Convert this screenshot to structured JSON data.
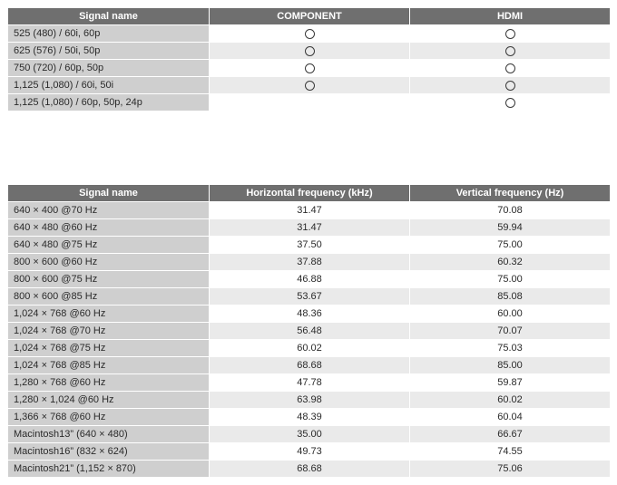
{
  "table1": {
    "headers": [
      "Signal name",
      "COMPONENT",
      "HDMI"
    ],
    "col_widths": [
      "222px",
      "221px",
      "221px"
    ],
    "rows": [
      {
        "signal": "525 (480) / 60i, 60p",
        "comp": true,
        "hdmi": true
      },
      {
        "signal": "625 (576) / 50i, 50p",
        "comp": true,
        "hdmi": true
      },
      {
        "signal": "750 (720) / 60p, 50p",
        "comp": true,
        "hdmi": true
      },
      {
        "signal": "1,125 (1,080) / 60i, 50i",
        "comp": true,
        "hdmi": true
      },
      {
        "signal": "1,125 (1,080) / 60p, 50p, 24p",
        "comp": false,
        "hdmi": true
      }
    ]
  },
  "table2": {
    "headers": [
      "Signal name",
      "Horizontal frequency (kHz)",
      "Vertical frequency (Hz)"
    ],
    "col_widths": [
      "222px",
      "221px",
      "221px"
    ],
    "rows": [
      {
        "signal": "640 × 400 @70 Hz",
        "h": "31.47",
        "v": "70.08"
      },
      {
        "signal": "640 × 480 @60 Hz",
        "h": "31.47",
        "v": "59.94"
      },
      {
        "signal": "640 × 480 @75 Hz",
        "h": "37.50",
        "v": "75.00"
      },
      {
        "signal": "800 × 600 @60 Hz",
        "h": "37.88",
        "v": "60.32"
      },
      {
        "signal": "800 × 600 @75 Hz",
        "h": "46.88",
        "v": "75.00"
      },
      {
        "signal": "800 × 600 @85 Hz",
        "h": "53.67",
        "v": "85.08"
      },
      {
        "signal": "1,024 × 768 @60 Hz",
        "h": "48.36",
        "v": "60.00"
      },
      {
        "signal": "1,024 × 768 @70 Hz",
        "h": "56.48",
        "v": "70.07"
      },
      {
        "signal": "1,024 × 768 @75 Hz",
        "h": "60.02",
        "v": "75.03"
      },
      {
        "signal": "1,024 × 768 @85 Hz",
        "h": "68.68",
        "v": "85.00"
      },
      {
        "signal": "1,280 × 768 @60 Hz",
        "h": "47.78",
        "v": "59.87"
      },
      {
        "signal": "1,280 × 1,024 @60 Hz",
        "h": "63.98",
        "v": "60.02"
      },
      {
        "signal": "1,366 × 768 @60 Hz",
        "h": "48.39",
        "v": "60.04"
      },
      {
        "signal": "Macintosh13” (640 × 480)",
        "h": "35.00",
        "v": "66.67"
      },
      {
        "signal": "Macintosh16” (832 × 624)",
        "h": "49.73",
        "v": "74.55"
      },
      {
        "signal": "Macintosh21” (1,152 × 870)",
        "h": "68.68",
        "v": "75.06"
      }
    ]
  }
}
